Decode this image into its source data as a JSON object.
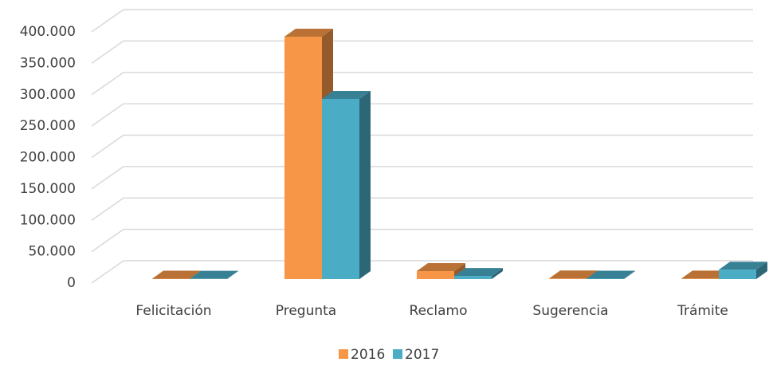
{
  "chart_data": {
    "type": "bar3d",
    "categories": [
      "Felicitación",
      "Pregunta",
      "Reclamo",
      "Sugerencia",
      "Trámite"
    ],
    "series": [
      {
        "name": "2016",
        "color": "#f79646",
        "values": [
          600,
          386000,
          12700,
          1000,
          800
        ]
      },
      {
        "name": "2017",
        "color": "#4bacc6",
        "values": [
          400,
          287000,
          5000,
          600,
          15000
        ]
      }
    ],
    "ylim": [
      0,
      400000
    ],
    "yticks": [
      0,
      {
        "value": 50000,
        "label": "50.000"
      },
      {
        "value": 100000,
        "label": "100.000"
      },
      {
        "value": 150000,
        "label": "150.000"
      },
      {
        "value": 200000,
        "label": "200.000"
      },
      {
        "value": 250000,
        "label": "250.000"
      },
      {
        "value": 300000,
        "label": "300.000"
      },
      {
        "value": 350000,
        "label": "350.000"
      },
      {
        "value": 400000,
        "label": "400.000"
      }
    ],
    "grid": true,
    "legend": "bottom"
  }
}
